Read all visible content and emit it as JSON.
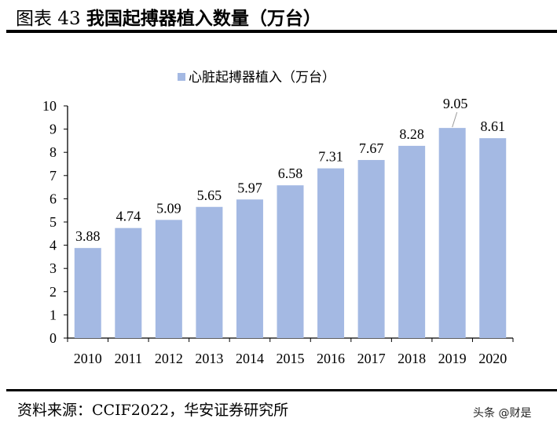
{
  "header": {
    "figure_label": "图表 43",
    "title": "我国起搏器植入数量（万台）"
  },
  "footer": {
    "source": "资料来源：CCIF2022，华安证券研究所",
    "watermark": "头条 @财是"
  },
  "chart_data": {
    "type": "bar",
    "categories": [
      "2010",
      "2011",
      "2012",
      "2013",
      "2014",
      "2015",
      "2016",
      "2017",
      "2018",
      "2019",
      "2020"
    ],
    "series": [
      {
        "name": "心脏起搏器植入（万台）",
        "values": [
          3.88,
          4.74,
          5.09,
          5.65,
          5.97,
          6.58,
          7.31,
          7.67,
          8.28,
          9.05,
          8.61
        ],
        "color": "#A4B9E3"
      }
    ],
    "data_labels": [
      "3.88",
      "4.74",
      "5.09",
      "5.65",
      "5.97",
      "6.58",
      "7.31",
      "7.67",
      "8.28",
      "9.05",
      "8.61"
    ],
    "yticks": [
      "0",
      "1",
      "2",
      "3",
      "4",
      "5",
      "6",
      "7",
      "8",
      "9",
      "10"
    ],
    "ylim": [
      0,
      10
    ],
    "grid": false,
    "legend": "top"
  }
}
